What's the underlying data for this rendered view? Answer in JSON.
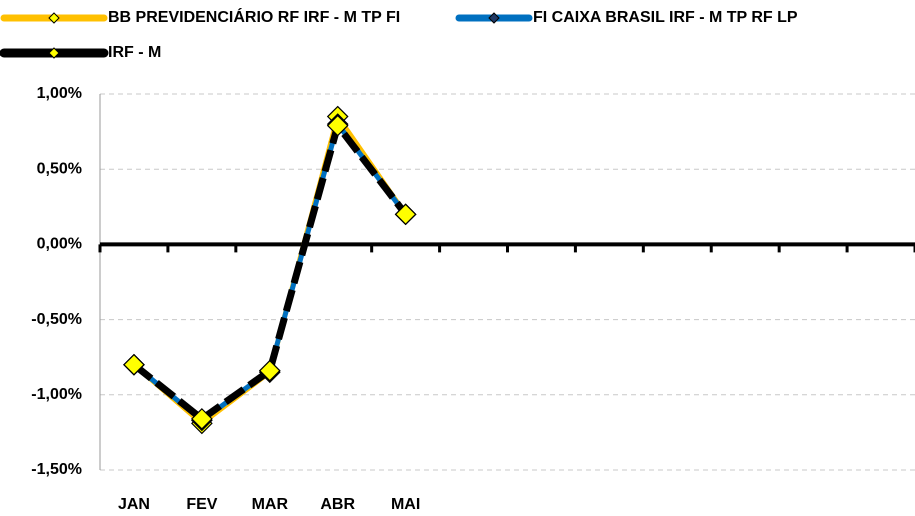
{
  "chart_data": {
    "type": "line",
    "categories": [
      "JAN",
      "FEV",
      "MAR",
      "ABR",
      "MAI",
      null,
      null,
      null,
      null,
      null,
      null,
      null
    ],
    "series": [
      {
        "name": "BB PREVIDENCIÁRIO RF IRF - M TP FI",
        "color": "#FFC000",
        "marker_color": "#FFFF00",
        "values": [
          -0.8,
          -1.19,
          -0.85,
          0.85,
          0.2,
          null,
          null,
          null,
          null,
          null,
          null,
          null
        ]
      },
      {
        "name": "FI CAIXA BRASIL IRF - M TP RF LP",
        "color": "#0070C0",
        "marker_color": "#1F3864",
        "values": [
          -0.8,
          -1.17,
          -0.84,
          0.8,
          0.2,
          null,
          null,
          null,
          null,
          null,
          null,
          null
        ]
      },
      {
        "name": "IRF - M",
        "color": "#000000",
        "marker_color": "#FFFF00",
        "values": [
          -0.8,
          -1.16,
          -0.84,
          0.79,
          0.2,
          null,
          null,
          null,
          null,
          null,
          null,
          null
        ]
      }
    ],
    "ylim": [
      -1.5,
      1.0
    ],
    "yticks": [
      {
        "value": -1.5,
        "label": "-1,50%"
      },
      {
        "value": -1.0,
        "label": "-1,00%"
      },
      {
        "value": -0.5,
        "label": "-0,50%"
      },
      {
        "value": 0,
        "label": "0,00%"
      },
      {
        "value": 0.5,
        "label": "0,50%"
      },
      {
        "value": 1.0,
        "label": "1,00%"
      }
    ],
    "grid": true
  }
}
